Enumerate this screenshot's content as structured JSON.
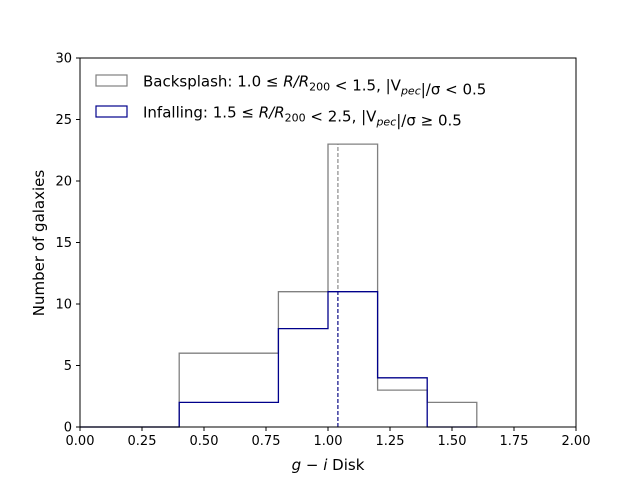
{
  "chart_data": {
    "type": "histogram",
    "xlabel_prefix": "g − i",
    "xlabel_suffix": " Disk",
    "ylabel": "Number of galaxies",
    "xlim": [
      0.0,
      2.0
    ],
    "ylim": [
      0,
      30
    ],
    "xticks": [
      "0.00",
      "0.25",
      "0.50",
      "0.75",
      "1.00",
      "1.25",
      "1.50",
      "1.75",
      "2.00"
    ],
    "yticks": [
      "0",
      "5",
      "10",
      "15",
      "20",
      "25",
      "30"
    ],
    "bin_edges": [
      0.0,
      0.2,
      0.4,
      0.6,
      0.8,
      1.0,
      1.2,
      1.4,
      1.6
    ],
    "grid": false,
    "legend_position": "upper-left",
    "series": [
      {
        "name": "Backsplash: 1.0 ≤ R/R200 < 1.5, |Vpec|/σ < 0.5",
        "legend": {
          "prefix": "Backsplash: 1.0 ≤ ",
          "var": "R/R",
          "sub": "200",
          "mid": " < 1.5, |V",
          "sub2": "pec",
          "tail": "|/σ < 0.5"
        },
        "color": "#808080",
        "counts": [
          0,
          0,
          6,
          6,
          11,
          23,
          3,
          2
        ],
        "median": 1.04
      },
      {
        "name": "Infalling: 1.5 ≤ R/R200 < 2.5, |Vpec|/σ ≥ 0.5",
        "legend": {
          "prefix": "Infalling: 1.5 ≤ ",
          "var": "R/R",
          "sub": "200",
          "mid": " < 2.5, |V",
          "sub2": "pec",
          "tail": "|/σ ≥ 0.5"
        },
        "color": "#00008b",
        "counts": [
          0,
          0,
          2,
          2,
          8,
          11,
          4,
          0
        ],
        "median": 1.04
      }
    ]
  }
}
